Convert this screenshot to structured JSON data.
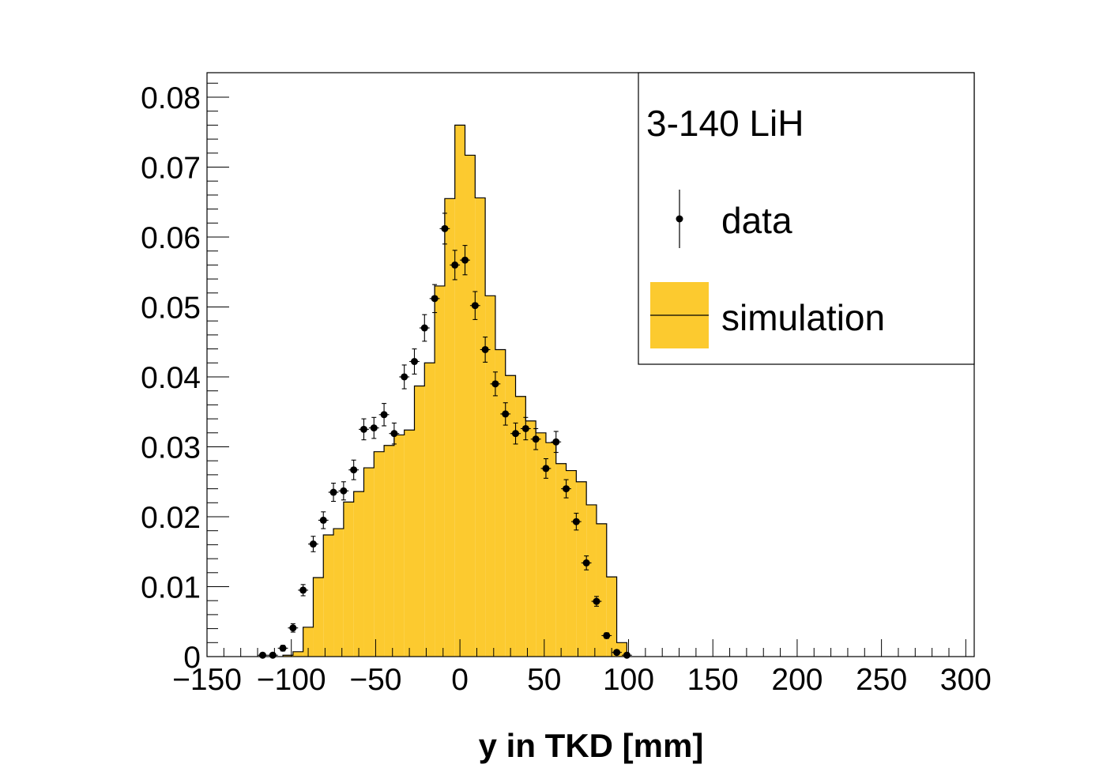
{
  "chart_data": {
    "type": "bar",
    "title": "",
    "xlabel": "y in TKD [mm]",
    "ylabel": "",
    "xlim": [
      -150,
      305
    ],
    "ylim": [
      0,
      0.0835
    ],
    "bin_width": 6,
    "x_ticks": [
      {
        "v": -150,
        "label": "−150"
      },
      {
        "v": -100,
        "label": "−100"
      },
      {
        "v": -50,
        "label": "−50"
      },
      {
        "v": 0,
        "label": "0"
      },
      {
        "v": 50,
        "label": "50"
      },
      {
        "v": 100,
        "label": "100"
      },
      {
        "v": 150,
        "label": "150"
      },
      {
        "v": 200,
        "label": "200"
      },
      {
        "v": 250,
        "label": "250"
      },
      {
        "v": 300,
        "label": "300"
      }
    ],
    "y_ticks": [
      {
        "v": 0,
        "label": "0"
      },
      {
        "v": 0.01,
        "label": "0.01"
      },
      {
        "v": 0.02,
        "label": "0.02"
      },
      {
        "v": 0.03,
        "label": "0.03"
      },
      {
        "v": 0.04,
        "label": "0.04"
      },
      {
        "v": 0.05,
        "label": "0.05"
      },
      {
        "v": 0.06,
        "label": "0.06"
      },
      {
        "v": 0.07,
        "label": "0.07"
      },
      {
        "v": 0.08,
        "label": "0.08"
      }
    ],
    "legend": {
      "title": "3-140 LiH",
      "position": "top-right",
      "entries": [
        {
          "label": "data",
          "style": "marker-errorbar"
        },
        {
          "label": "simulation",
          "style": "filled-histogram"
        }
      ]
    },
    "colors": {
      "simulation_fill": "#fcca2f",
      "outline": "#000000"
    },
    "series": [
      {
        "name": "simulation",
        "type": "histogram",
        "bin_edges": [
          -105,
          -99,
          -93,
          -87,
          -81,
          -75,
          -69,
          -63,
          -57,
          -51,
          -45,
          -39,
          -33,
          -27,
          -21,
          -15,
          -9,
          -3,
          3,
          9,
          15,
          21,
          27,
          33,
          39,
          45,
          51,
          57,
          63,
          69,
          75,
          81,
          87,
          93,
          99
        ],
        "values": [
          0.0002,
          0.0007,
          0.0042,
          0.0113,
          0.0174,
          0.0183,
          0.0221,
          0.0236,
          0.027,
          0.0293,
          0.0302,
          0.0317,
          0.0324,
          0.0387,
          0.042,
          0.053,
          0.0655,
          0.076,
          0.0717,
          0.0656,
          0.0516,
          0.0439,
          0.0402,
          0.0372,
          0.0337,
          0.032,
          0.0306,
          0.0276,
          0.0266,
          0.025,
          0.0217,
          0.019,
          0.0114,
          0.002
        ]
      },
      {
        "name": "data",
        "type": "points",
        "x": [
          -117,
          -111,
          -105,
          -99,
          -93,
          -87,
          -81,
          -75,
          -69,
          -63,
          -57,
          -51,
          -45,
          -39,
          -33,
          -27,
          -21,
          -15,
          -9,
          -3,
          3,
          9,
          15,
          21,
          27,
          33,
          39,
          45,
          51,
          57,
          63,
          69,
          75,
          81,
          87,
          93,
          99
        ],
        "y": [
          0.0002,
          0.0002,
          0.0012,
          0.0041,
          0.0095,
          0.0161,
          0.0195,
          0.0235,
          0.0237,
          0.0267,
          0.0325,
          0.0327,
          0.0346,
          0.0319,
          0.04,
          0.0422,
          0.047,
          0.0512,
          0.0612,
          0.056,
          0.0567,
          0.0502,
          0.0439,
          0.039,
          0.0347,
          0.0319,
          0.0326,
          0.0311,
          0.0269,
          0.0307,
          0.024,
          0.0193,
          0.0134,
          0.0079,
          0.003,
          0.0006,
          0.0002
        ],
        "yerr": [
          0.0002,
          0.0002,
          0.0004,
          0.0006,
          0.0008,
          0.0011,
          0.0012,
          0.0013,
          0.0013,
          0.0014,
          0.0015,
          0.0015,
          0.0016,
          0.0015,
          0.0017,
          0.0018,
          0.0019,
          0.002,
          0.0022,
          0.0021,
          0.0021,
          0.002,
          0.0018,
          0.0017,
          0.0016,
          0.0015,
          0.0016,
          0.0015,
          0.0014,
          0.0015,
          0.0013,
          0.0012,
          0.001,
          0.0007,
          0.0004,
          0.0002,
          0.0001
        ]
      }
    ]
  }
}
